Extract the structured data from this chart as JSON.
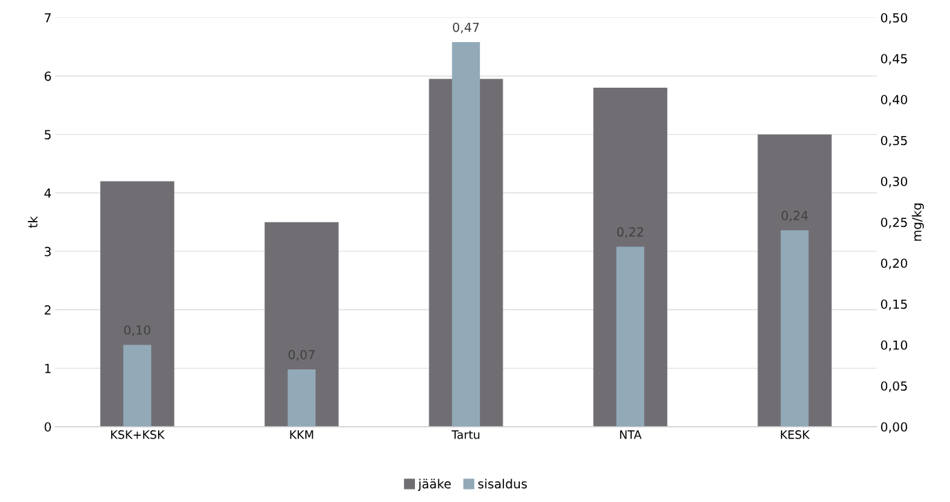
{
  "chart_data": {
    "type": "bar",
    "ylabel": "tk",
    "y2label": "mg/kg",
    "categories": [
      "KSK+KSK",
      "KKM",
      "Tartu",
      "NTA",
      "KESK"
    ],
    "series": [
      {
        "name": "jääke",
        "color": "#706e73",
        "values": [
          4.2,
          3.5,
          5.95,
          5.8,
          5.0
        ]
      },
      {
        "name": "sisaldus",
        "color": "#92a9b8",
        "axis": "y2",
        "values": [
          0.1,
          0.07,
          0.47,
          0.22,
          0.24
        ],
        "value_labels": [
          "0,10",
          "0,07",
          "0,47",
          "0,22",
          "0,24"
        ]
      }
    ],
    "ylim": [
      0,
      7
    ],
    "yticks": [
      0,
      1,
      2,
      3,
      4,
      5,
      6,
      7
    ],
    "y2lim": [
      0,
      0.5
    ],
    "y2ticks": [
      {
        "value": 0,
        "label": "0,00"
      },
      {
        "value": 0.05,
        "label": "0,05"
      },
      {
        "value": 0.1,
        "label": "0,10"
      },
      {
        "value": 0.15,
        "label": "0,15"
      },
      {
        "value": 0.2,
        "label": "0,20"
      },
      {
        "value": 0.25,
        "label": "0,25"
      },
      {
        "value": 0.3,
        "label": "0,30"
      },
      {
        "value": 0.35,
        "label": "0,35"
      },
      {
        "value": 0.4,
        "label": "0,40"
      },
      {
        "value": 0.45,
        "label": "0,45"
      },
      {
        "value": 0.5,
        "label": "0,50"
      }
    ],
    "grid": "y",
    "legend": "bottom"
  }
}
